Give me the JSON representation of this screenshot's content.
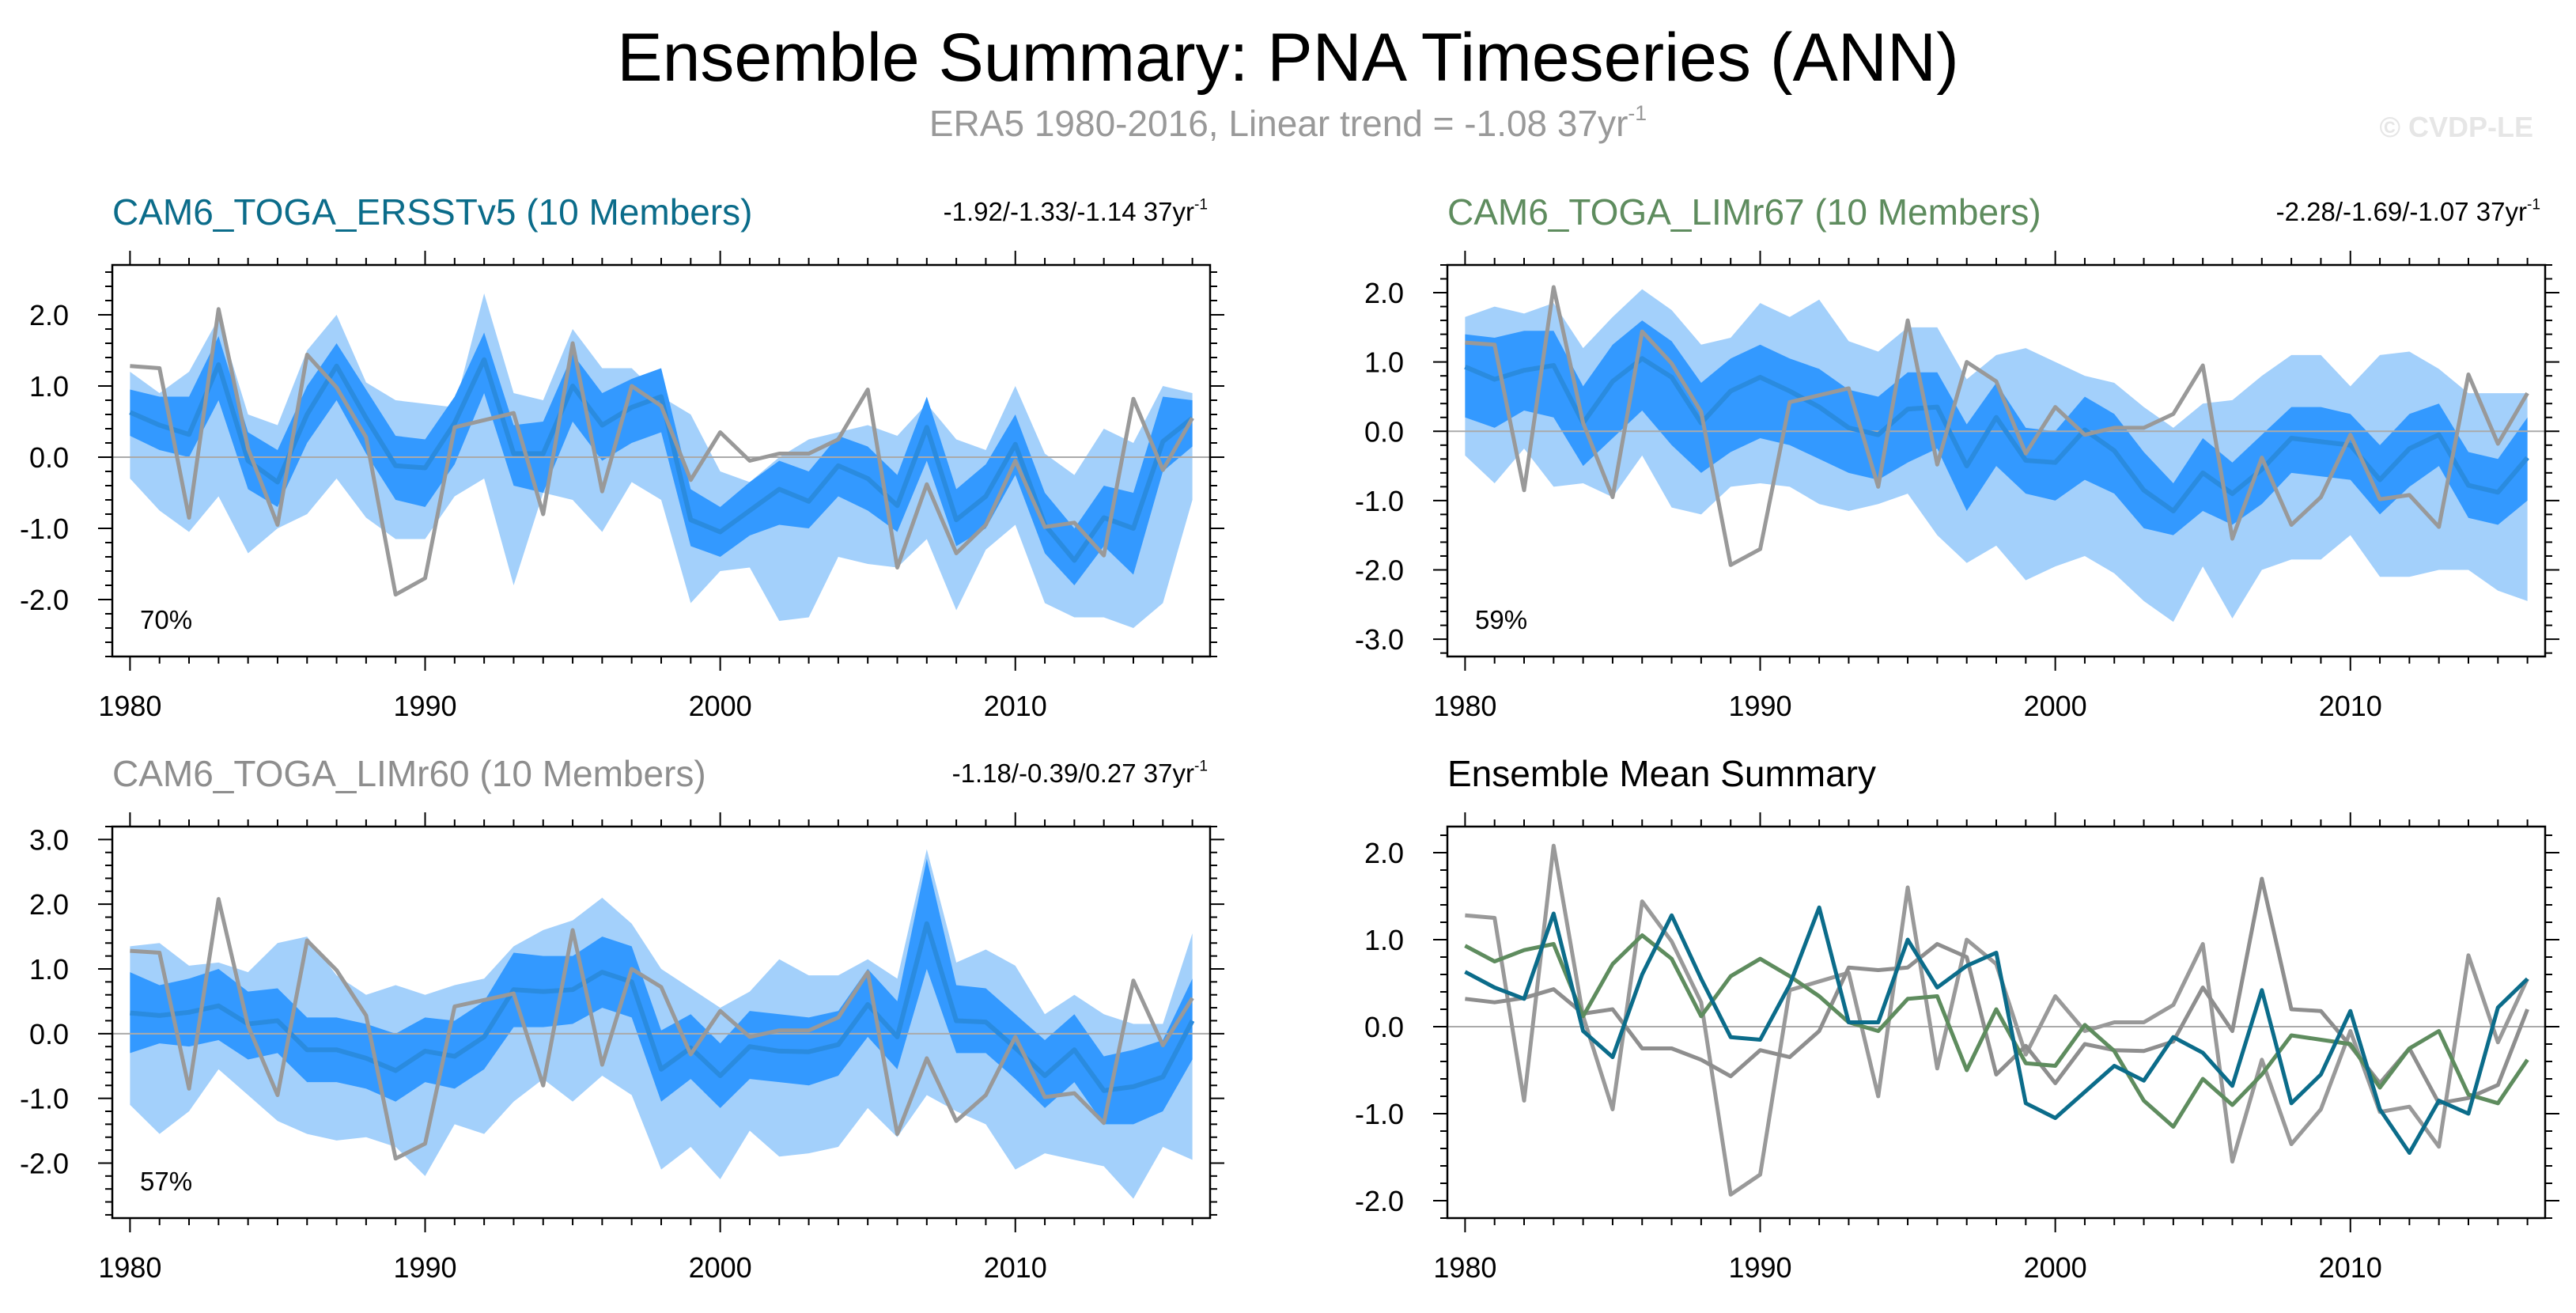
{
  "title": "Ensemble Summary: PNA Timeseries (ANN)",
  "subtitle": {
    "text": "ERA5 1980-2016, Linear trend = -1.08 37yr",
    "sup": "-1"
  },
  "watermark": "© CVDP-LE",
  "colors": {
    "obs": "#999999",
    "spread_outer": "#a3d0fb",
    "spread_inner": "#3399ff",
    "ens_mean": "#2a8bdf",
    "ersst": "#0b6c8a",
    "limr67": "#5e8c5e",
    "limr60": "#8e8e8e"
  },
  "panels": [
    {
      "title": "CAM6_TOGA_ERSSTv5 (10 Members)",
      "title_color": "#0b6c8a",
      "trend": "-1.92/-1.33/-1.14 37yr",
      "trend_sup": "-1",
      "pct": "70%"
    },
    {
      "title": "CAM6_TOGA_LIMr67 (10 Members)",
      "title_color": "#5e8c5e",
      "trend": "-2.28/-1.69/-1.07 37yr",
      "trend_sup": "-1",
      "pct": "59%"
    },
    {
      "title": "CAM6_TOGA_LIMr60 (10 Members)",
      "title_color": "#8e8e8e",
      "trend": "-1.18/-0.39/0.27 37yr",
      "trend_sup": "-1",
      "pct": "57%"
    },
    {
      "title": "Ensemble Mean Summary",
      "title_color": "#000000"
    }
  ],
  "chart_data": [
    {
      "type": "area",
      "title": "CAM6_TOGA_ERSSTv5 (10 Members)",
      "x": [
        1980,
        1981,
        1982,
        1983,
        1984,
        1985,
        1986,
        1987,
        1988,
        1989,
        1990,
        1991,
        1992,
        1993,
        1994,
        1995,
        1996,
        1997,
        1998,
        1999,
        2000,
        2001,
        2002,
        2003,
        2004,
        2005,
        2006,
        2007,
        2008,
        2009,
        2010,
        2011,
        2012,
        2013,
        2014,
        2015,
        2016
      ],
      "ylim": [
        -2.8,
        2.7
      ],
      "yticks": [
        -2.0,
        -1.0,
        0.0,
        1.0,
        2.0
      ],
      "ytick_labels": [
        "-2.0",
        "-1.0",
        "0.0",
        "1.0",
        "2.0"
      ],
      "xticks": [
        1980,
        1990,
        2000,
        2010
      ],
      "xtick_labels": [
        "1980",
        "1990",
        "2000",
        "2010"
      ],
      "observed": [
        1.28,
        1.25,
        -0.85,
        2.08,
        0.12,
        -0.95,
        1.44,
        0.98,
        0.28,
        -1.93,
        -1.7,
        0.42,
        0.52,
        0.62,
        -0.8,
        1.6,
        -0.48,
        1.0,
        0.72,
        -0.32,
        0.35,
        -0.05,
        0.05,
        0.05,
        0.25,
        0.95,
        -1.55,
        -0.38,
        -1.35,
        -0.95,
        -0.05,
        -0.98,
        -0.92,
        -1.38,
        0.82,
        -0.18,
        0.55
      ],
      "ens_mean": [
        0.63,
        0.45,
        0.32,
        1.3,
        -0.05,
        -0.35,
        0.6,
        1.28,
        0.55,
        -0.12,
        -0.15,
        0.48,
        1.37,
        0.05,
        0.05,
        1.0,
        0.45,
        0.7,
        0.85,
        -0.88,
        -1.05,
        -0.75,
        -0.45,
        -0.62,
        -0.12,
        -0.3,
        -0.68,
        0.42,
        -0.88,
        -0.55,
        0.18,
        -0.95,
        -1.45,
        -0.85,
        -1.0,
        0.22,
        0.55
      ],
      "inner_low": [
        0.3,
        0.1,
        0.0,
        0.8,
        -0.45,
        -0.7,
        0.2,
        0.8,
        0.05,
        -0.6,
        -0.7,
        -0.1,
        0.9,
        -0.4,
        -0.5,
        0.5,
        -0.05,
        0.2,
        0.35,
        -1.25,
        -1.4,
        -1.1,
        -0.95,
        -1.0,
        -0.55,
        -0.75,
        -1.05,
        -0.05,
        -1.25,
        -1.0,
        -0.25,
        -1.35,
        -1.8,
        -1.25,
        -1.65,
        -0.2,
        0.15
      ],
      "inner_high": [
        0.95,
        0.85,
        0.85,
        1.7,
        0.35,
        0.1,
        1.0,
        1.6,
        0.95,
        0.3,
        0.25,
        0.85,
        1.75,
        0.45,
        0.5,
        1.45,
        0.9,
        1.1,
        1.25,
        -0.45,
        -0.7,
        -0.35,
        -0.05,
        -0.2,
        0.3,
        0.15,
        -0.25,
        0.85,
        -0.45,
        -0.1,
        0.6,
        -0.5,
        -1.0,
        -0.4,
        -0.5,
        0.85,
        0.8
      ],
      "outer_low": [
        -0.3,
        -0.75,
        -1.05,
        -0.55,
        -1.35,
        -1.0,
        -0.8,
        -0.3,
        -0.85,
        -1.15,
        -1.15,
        -0.55,
        -0.3,
        -1.8,
        -0.5,
        -0.6,
        -1.05,
        -0.35,
        -0.6,
        -2.05,
        -1.6,
        -1.55,
        -2.3,
        -2.25,
        -1.4,
        -1.5,
        -1.55,
        -1.15,
        -2.15,
        -1.3,
        -0.95,
        -2.05,
        -2.25,
        -2.25,
        -2.4,
        -2.05,
        -0.6
      ],
      "outer_high": [
        1.2,
        0.9,
        1.2,
        1.95,
        0.6,
        0.45,
        1.5,
        2.0,
        1.05,
        0.8,
        0.75,
        0.7,
        2.3,
        0.9,
        0.8,
        1.8,
        1.25,
        1.25,
        0.85,
        0.6,
        -0.2,
        -0.35,
        0.0,
        0.25,
        0.35,
        0.45,
        0.3,
        0.75,
        0.25,
        0.1,
        1.0,
        0.05,
        -0.25,
        0.4,
        0.2,
        1.0,
        0.9
      ]
    },
    {
      "type": "area",
      "title": "CAM6_TOGA_LIMr67 (10 Members)",
      "x": [
        1980,
        1981,
        1982,
        1983,
        1984,
        1985,
        1986,
        1987,
        1988,
        1989,
        1990,
        1991,
        1992,
        1993,
        1994,
        1995,
        1996,
        1997,
        1998,
        1999,
        2000,
        2001,
        2002,
        2003,
        2004,
        2005,
        2006,
        2007,
        2008,
        2009,
        2010,
        2011,
        2012,
        2013,
        2014,
        2015,
        2016
      ],
      "ylim": [
        -3.25,
        2.4
      ],
      "yticks": [
        -3.0,
        -2.0,
        -1.0,
        0.0,
        1.0,
        2.0
      ],
      "ytick_labels": [
        "-3.0",
        "-2.0",
        "-1.0",
        "0.0",
        "1.0",
        "2.0"
      ],
      "xticks": [
        1980,
        1990,
        2000,
        2010
      ],
      "xtick_labels": [
        "1980",
        "1990",
        "2000",
        "2010"
      ],
      "observed": [
        1.28,
        1.25,
        -0.85,
        2.08,
        0.12,
        -0.95,
        1.44,
        0.98,
        0.28,
        -1.93,
        -1.7,
        0.42,
        0.52,
        0.62,
        -0.8,
        1.6,
        -0.48,
        1.0,
        0.72,
        -0.32,
        0.35,
        -0.05,
        0.05,
        0.05,
        0.25,
        0.95,
        -1.55,
        -0.38,
        -1.35,
        -0.95,
        -0.05,
        -0.98,
        -0.92,
        -1.38,
        0.82,
        -0.18,
        0.55
      ],
      "ens_mean": [
        0.93,
        0.75,
        0.88,
        0.95,
        0.12,
        0.72,
        1.05,
        0.78,
        0.12,
        0.58,
        0.78,
        0.58,
        0.35,
        0.05,
        -0.05,
        0.32,
        0.35,
        -0.5,
        0.2,
        -0.42,
        -0.45,
        0.02,
        -0.28,
        -0.85,
        -1.15,
        -0.6,
        -0.9,
        -0.55,
        -0.1,
        -0.15,
        -0.2,
        -0.7,
        -0.25,
        -0.05,
        -0.78,
        -0.88,
        -0.38
      ],
      "inner_low": [
        0.2,
        0.05,
        0.3,
        0.2,
        -0.5,
        -0.1,
        0.3,
        -0.2,
        -0.6,
        -0.3,
        -0.1,
        -0.2,
        -0.4,
        -0.6,
        -0.7,
        -0.45,
        -0.25,
        -1.15,
        -0.5,
        -0.9,
        -1.0,
        -0.7,
        -0.9,
        -1.4,
        -1.5,
        -1.15,
        -1.35,
        -1.05,
        -0.6,
        -0.65,
        -0.7,
        -1.2,
        -0.8,
        -0.5,
        -1.25,
        -1.35,
        -1.0
      ],
      "inner_high": [
        1.4,
        1.35,
        1.45,
        1.45,
        0.65,
        1.25,
        1.6,
        1.3,
        0.7,
        1.05,
        1.25,
        1.05,
        0.9,
        0.6,
        0.5,
        0.85,
        0.85,
        0.1,
        0.7,
        0.05,
        0.0,
        0.5,
        0.25,
        -0.3,
        -0.75,
        -0.1,
        -0.45,
        -0.05,
        0.35,
        0.35,
        0.25,
        -0.2,
        0.25,
        0.4,
        -0.3,
        -0.4,
        0.2
      ],
      "outer_low": [
        -0.35,
        -0.75,
        -0.25,
        -0.8,
        -0.75,
        -0.95,
        -0.35,
        -1.1,
        -1.2,
        -0.8,
        -0.75,
        -0.8,
        -1.05,
        -1.15,
        -1.05,
        -0.9,
        -1.5,
        -1.9,
        -1.65,
        -2.15,
        -1.95,
        -1.8,
        -2.05,
        -2.45,
        -2.75,
        -1.95,
        -2.7,
        -2.0,
        -1.85,
        -1.85,
        -1.5,
        -2.1,
        -2.1,
        -2.0,
        -2.0,
        -2.3,
        -2.45
      ],
      "outer_high": [
        1.65,
        1.8,
        1.7,
        1.85,
        1.2,
        1.65,
        2.05,
        1.75,
        1.25,
        1.35,
        1.85,
        1.65,
        1.9,
        1.3,
        1.15,
        1.5,
        1.5,
        0.75,
        1.1,
        1.2,
        1.0,
        0.8,
        0.7,
        0.35,
        0.05,
        0.4,
        0.45,
        0.8,
        1.1,
        1.1,
        0.65,
        1.1,
        1.15,
        0.9,
        0.55,
        0.55,
        0.55
      ]
    },
    {
      "type": "area",
      "title": "CAM6_TOGA_LIMr60 (10 Members)",
      "x": [
        1980,
        1981,
        1982,
        1983,
        1984,
        1985,
        1986,
        1987,
        1988,
        1989,
        1990,
        1991,
        1992,
        1993,
        1994,
        1995,
        1996,
        1997,
        1998,
        1999,
        2000,
        2001,
        2002,
        2003,
        2004,
        2005,
        2006,
        2007,
        2008,
        2009,
        2010,
        2011,
        2012,
        2013,
        2014,
        2015,
        2016
      ],
      "ylim": [
        -2.85,
        3.2
      ],
      "yticks": [
        -2.0,
        -1.0,
        0.0,
        1.0,
        2.0,
        3.0
      ],
      "ytick_labels": [
        "-2.0",
        "-1.0",
        "0.0",
        "1.0",
        "2.0",
        "3.0"
      ],
      "xticks": [
        1980,
        1990,
        2000,
        2010
      ],
      "xtick_labels": [
        "1980",
        "1990",
        "2000",
        "2010"
      ],
      "observed": [
        1.28,
        1.25,
        -0.85,
        2.08,
        0.12,
        -0.95,
        1.44,
        0.98,
        0.28,
        -1.93,
        -1.7,
        0.42,
        0.52,
        0.62,
        -0.8,
        1.6,
        -0.48,
        1.0,
        0.72,
        -0.32,
        0.35,
        -0.05,
        0.05,
        0.05,
        0.25,
        0.95,
        -1.55,
        -0.38,
        -1.35,
        -0.95,
        -0.05,
        -0.98,
        -0.92,
        -1.38,
        0.82,
        -0.18,
        0.55
      ],
      "ens_mean": [
        0.32,
        0.28,
        0.33,
        0.43,
        0.15,
        0.2,
        -0.25,
        -0.25,
        -0.38,
        -0.57,
        -0.27,
        -0.35,
        -0.05,
        0.68,
        0.65,
        0.68,
        0.95,
        0.8,
        -0.55,
        -0.22,
        -0.65,
        -0.2,
        -0.27,
        -0.28,
        -0.17,
        0.45,
        -0.05,
        1.7,
        0.2,
        0.18,
        -0.22,
        -0.65,
        -0.25,
        -0.88,
        -0.82,
        -0.67,
        0.2
      ],
      "inner_low": [
        -0.3,
        -0.15,
        -0.2,
        -0.1,
        -0.4,
        -0.3,
        -0.75,
        -0.75,
        -0.85,
        -1.05,
        -0.75,
        -0.85,
        -0.55,
        0.1,
        0.1,
        0.15,
        0.4,
        0.25,
        -1.05,
        -0.7,
        -1.15,
        -0.7,
        -0.75,
        -0.8,
        -0.65,
        -0.05,
        -0.55,
        1.0,
        -0.3,
        -0.3,
        -0.7,
        -1.15,
        -0.75,
        -1.4,
        -1.4,
        -1.2,
        -0.4
      ],
      "inner_high": [
        0.95,
        0.75,
        0.85,
        1.0,
        0.65,
        0.7,
        0.25,
        0.25,
        0.15,
        0.0,
        0.25,
        0.2,
        0.5,
        1.25,
        1.2,
        1.2,
        1.5,
        1.35,
        0.05,
        0.3,
        -0.15,
        0.35,
        0.3,
        0.25,
        0.35,
        1.0,
        0.5,
        2.7,
        0.75,
        0.7,
        0.3,
        -0.1,
        0.3,
        -0.35,
        -0.25,
        -0.1,
        0.85
      ],
      "outer_low": [
        -1.1,
        -1.55,
        -1.2,
        -0.55,
        -0.95,
        -1.35,
        -1.55,
        -1.65,
        -1.6,
        -1.75,
        -2.2,
        -1.4,
        -1.55,
        -1.05,
        -0.7,
        -1.05,
        -0.65,
        -0.95,
        -2.1,
        -1.75,
        -2.25,
        -1.5,
        -1.9,
        -1.85,
        -1.75,
        -1.15,
        -1.6,
        -0.95,
        -1.2,
        -1.4,
        -2.1,
        -1.85,
        -1.95,
        -2.05,
        -2.55,
        -1.75,
        -1.95
      ],
      "outer_high": [
        1.35,
        1.4,
        1.05,
        1.1,
        0.95,
        1.4,
        1.5,
        0.9,
        0.6,
        0.75,
        0.6,
        0.75,
        0.85,
        1.35,
        1.6,
        1.75,
        2.1,
        1.7,
        1.0,
        0.7,
        0.4,
        0.65,
        1.15,
        0.9,
        0.9,
        1.15,
        0.85,
        2.85,
        1.1,
        1.3,
        1.05,
        0.3,
        0.6,
        0.3,
        0.15,
        0.15,
        1.55
      ]
    },
    {
      "type": "line",
      "title": "Ensemble Mean Summary",
      "x": [
        1980,
        1981,
        1982,
        1983,
        1984,
        1985,
        1986,
        1987,
        1988,
        1989,
        1990,
        1991,
        1992,
        1993,
        1994,
        1995,
        1996,
        1997,
        1998,
        1999,
        2000,
        2001,
        2002,
        2003,
        2004,
        2005,
        2006,
        2007,
        2008,
        2009,
        2010,
        2011,
        2012,
        2013,
        2014,
        2015,
        2016
      ],
      "ylim": [
        -2.2,
        2.3
      ],
      "yticks": [
        -2.0,
        -1.0,
        0.0,
        1.0,
        2.0
      ],
      "ytick_labels": [
        "-2.0",
        "-1.0",
        "0.0",
        "1.0",
        "2.0"
      ],
      "xticks": [
        1980,
        1990,
        2000,
        2010
      ],
      "xtick_labels": [
        "1980",
        "1990",
        "2000",
        "2010"
      ],
      "series": [
        {
          "name": "ERA5",
          "color": "#999999",
          "values": [
            1.28,
            1.25,
            -0.85,
            2.08,
            0.12,
            -0.95,
            1.44,
            0.98,
            0.28,
            -1.93,
            -1.7,
            0.42,
            0.52,
            0.62,
            -0.8,
            1.6,
            -0.48,
            1.0,
            0.72,
            -0.32,
            0.35,
            -0.05,
            0.05,
            0.05,
            0.25,
            0.95,
            -1.55,
            -0.38,
            -1.35,
            -0.95,
            -0.05,
            -0.98,
            -0.92,
            -1.38,
            0.82,
            -0.18,
            0.55
          ]
        },
        {
          "name": "CAM6_TOGA_LIMr60",
          "color": "#8e8e8e",
          "values": [
            0.32,
            0.28,
            0.33,
            0.43,
            0.15,
            0.2,
            -0.25,
            -0.25,
            -0.38,
            -0.57,
            -0.27,
            -0.35,
            -0.05,
            0.68,
            0.65,
            0.68,
            0.95,
            0.8,
            -0.55,
            -0.22,
            -0.65,
            -0.2,
            -0.27,
            -0.28,
            -0.17,
            0.45,
            -0.05,
            1.7,
            0.2,
            0.18,
            -0.22,
            -0.65,
            -0.25,
            -0.88,
            -0.82,
            -0.67,
            0.2
          ]
        },
        {
          "name": "CAM6_TOGA_LIMr67",
          "color": "#5e8c5e",
          "values": [
            0.93,
            0.75,
            0.88,
            0.95,
            0.12,
            0.72,
            1.05,
            0.78,
            0.12,
            0.58,
            0.78,
            0.58,
            0.35,
            0.05,
            -0.05,
            0.32,
            0.35,
            -0.5,
            0.2,
            -0.42,
            -0.45,
            0.02,
            -0.28,
            -0.85,
            -1.15,
            -0.6,
            -0.9,
            -0.55,
            -0.1,
            -0.15,
            -0.2,
            -0.7,
            -0.25,
            -0.05,
            -0.78,
            -0.88,
            -0.38
          ]
        },
        {
          "name": "CAM6_TOGA_ERSSTv5",
          "color": "#0b6c8a",
          "values": [
            0.63,
            0.45,
            0.32,
            1.3,
            -0.05,
            -0.35,
            0.6,
            1.28,
            0.55,
            -0.12,
            -0.15,
            0.48,
            1.37,
            0.05,
            0.05,
            1.0,
            0.45,
            0.7,
            0.85,
            -0.88,
            -1.05,
            -0.75,
            -0.45,
            -0.62,
            -0.12,
            -0.3,
            -0.68,
            0.42,
            -0.88,
            -0.55,
            0.18,
            -0.95,
            -1.45,
            -0.85,
            -1.0,
            0.22,
            0.55
          ]
        }
      ]
    }
  ]
}
